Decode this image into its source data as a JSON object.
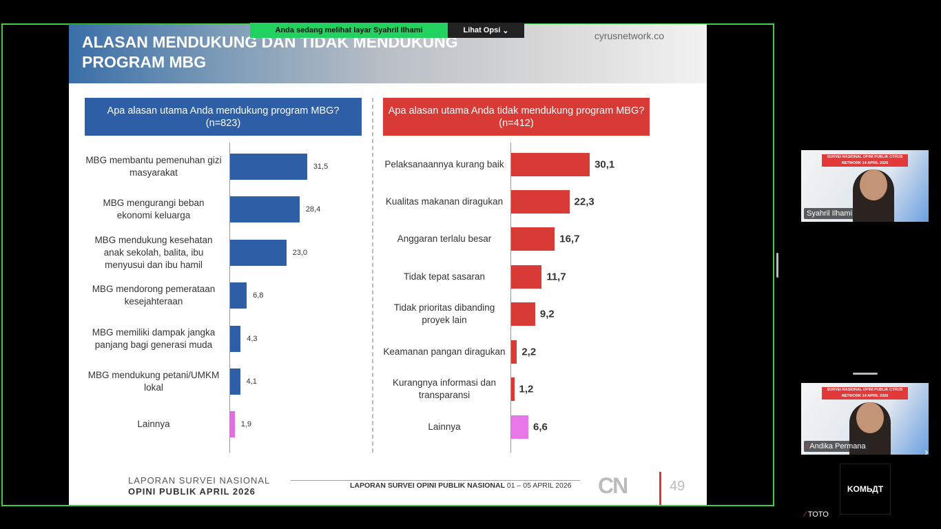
{
  "share_banner": {
    "text": "Anda sedang melihat layar  Syahril Ilhami",
    "options_label": "Lihat Opsi"
  },
  "slide": {
    "title": "ALASAN MENDUKUNG DAN TIDAK MENDUKUNG PROGRAM MBG",
    "site": "cyrusnetwork.co",
    "footer_left_1": "LAPORAN SURVEI NASIONAL",
    "footer_left_2": "OPINI PUBLIK APRIL 2026",
    "footer_center_bold": "LAPORAN SURVEI OPINI PUBLIK NASIONAL",
    "footer_center_date": " 01 – 05 APRIL 2026",
    "logo": "CN",
    "page": "49"
  },
  "chart_data": [
    {
      "type": "bar",
      "orientation": "horizontal",
      "title": "Apa alasan utama Anda mendukung program MBG? (n=823)",
      "categories": [
        "MBG membantu pemenuhan gizi masyarakat",
        "MBG mengurangi beban ekonomi keluarga",
        "MBG mendukung kesehatan anak sekolah, balita, ibu menyusui dan ibu hamil",
        "MBG mendorong pemerataan kesejahteraan",
        "MBG memiliki dampak jangka panjang bagi generasi muda",
        "MBG mendukung petani/UMKM lokal",
        "Lainnya"
      ],
      "values": [
        31.5,
        28.4,
        23.0,
        6.8,
        4.3,
        4.1,
        1.9
      ],
      "labels": [
        "31,5",
        "28,4",
        "23,0",
        "6,8",
        "4,3",
        "4,1",
        "1,9"
      ],
      "colors": [
        "#2e5fa6",
        "#2e5fa6",
        "#2e5fa6",
        "#2e5fa6",
        "#2e5fa6",
        "#2e5fa6",
        "#e06ee0"
      ]
    },
    {
      "type": "bar",
      "orientation": "horizontal",
      "title": "Apa alasan utama Anda tidak mendukung program MBG? (n=412)",
      "categories": [
        "Pelaksanaannya kurang baik",
        "Kualitas makanan diragukan",
        "Anggaran terlalu besar",
        "Tidak tepat sasaran",
        "Tidak prioritas dibanding proyek lain",
        "Keamanan pangan diragukan",
        "Kurangnya informasi dan transparansi",
        "Lainnya"
      ],
      "values": [
        30.1,
        22.3,
        16.7,
        11.7,
        9.2,
        2.2,
        1.2,
        6.6
      ],
      "labels": [
        "30,1",
        "22,3",
        "16,7",
        "11,7",
        "9,2",
        "2,2",
        "1,2",
        "6,6"
      ],
      "colors": [
        "#d83a35",
        "#d83a35",
        "#d83a35",
        "#d83a35",
        "#d83a35",
        "#d83a35",
        "#d83a35",
        "#e877e8"
      ]
    }
  ],
  "participants": [
    {
      "name": "Syahril Ilhami",
      "banner": "SURVEI NASIONAL OPINI PUBLIK CYRUS NETWORK 14 APRIL 2026"
    },
    {
      "name": "Andika Permana",
      "banner": "SURVEI NASIONAL OPINI PUBLIK CYRUS NETWORK 14 APRIL 2026"
    },
    {
      "name": "TOTO",
      "avatar_text": "KOMЬДТ"
    }
  ]
}
